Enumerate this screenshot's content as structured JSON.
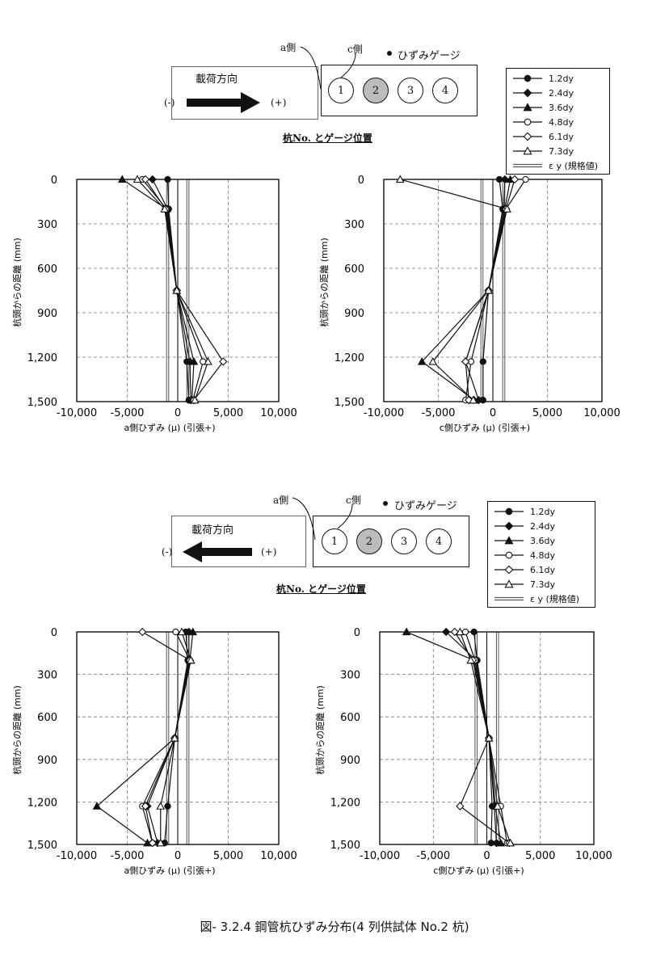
{
  "figure_caption": "図- 3.2.4 鋼管杭ひずみ分布(4 列供試体 No.2 杭)",
  "legend": [
    {
      "name": "1.2dy",
      "marker": "circle-filled"
    },
    {
      "name": "2.4dy",
      "marker": "diamond-filled"
    },
    {
      "name": "3.6dy",
      "marker": "triangle-filled"
    },
    {
      "name": "4.8dy",
      "marker": "circle-open"
    },
    {
      "name": "6.1dy",
      "marker": "diamond-open"
    },
    {
      "name": "7.3dy",
      "marker": "triangle-open"
    },
    {
      "name": "ε y (規格値)",
      "marker": "double-line"
    }
  ],
  "diagrams": [
    {
      "a_side": "a側",
      "c_side": "c側",
      "gauge_label": "ひずみゲージ",
      "load_dir_label": "載荷方向",
      "minus": "(-)",
      "plus": "(+)",
      "direction": "right",
      "pile_labels": [
        "1",
        "2",
        "3",
        "4"
      ],
      "caption": "杭No. とゲージ位置"
    },
    {
      "a_side": "a側",
      "c_side": "c側",
      "gauge_label": "ひずみゲージ",
      "load_dir_label": "載荷方向",
      "minus": "(-)",
      "plus": "(+)",
      "direction": "left",
      "pile_labels": [
        "1",
        "2",
        "3",
        "4"
      ],
      "caption": "杭No. とゲージ位置"
    }
  ],
  "chart_data": [
    {
      "type": "line",
      "ylabel": "杭頭からの距離 (mm)",
      "xlabel": "a側ひずみ (μ) (引張+)",
      "xlim": [
        -10000,
        10000
      ],
      "ylim": [
        0,
        1500
      ],
      "y_inverted": true,
      "xticks": [
        "-10,000",
        "-5,000",
        "0",
        "5,000",
        "10,000"
      ],
      "yticks": [
        "0",
        "300",
        "600",
        "900",
        "1,200",
        "1,500"
      ],
      "epsilon_y": [
        -1000,
        1000
      ],
      "y_depths": [
        0,
        200,
        750,
        1230,
        1490
      ],
      "series": [
        {
          "name": "1.2dy",
          "x": [
            -1000,
            -900,
            -100,
            900,
            1100
          ]
        },
        {
          "name": "2.4dy",
          "x": [
            -2500,
            -1000,
            -100,
            1200,
            1300
          ]
        },
        {
          "name": "3.6dy",
          "x": [
            -5500,
            -1100,
            -100,
            1600,
            1400
          ]
        },
        {
          "name": "4.8dy",
          "x": [
            -3500,
            -1100,
            -100,
            2500,
            1500
          ]
        },
        {
          "name": "6.1dy",
          "x": [
            -3200,
            -1200,
            -100,
            4500,
            1600
          ]
        },
        {
          "name": "7.3dy",
          "x": [
            -4000,
            -1300,
            -100,
            3000,
            1700
          ]
        }
      ]
    },
    {
      "type": "line",
      "ylabel": "杭頭からの距離 (mm)",
      "xlabel": "c側ひずみ (μ) (引張+)",
      "xlim": [
        -10000,
        10000
      ],
      "ylim": [
        0,
        1500
      ],
      "y_inverted": true,
      "xticks": [
        "-10,000",
        "-5,000",
        "0",
        "5,000",
        "10,000"
      ],
      "yticks": [
        "0",
        "300",
        "600",
        "900",
        "1,200",
        "1,500"
      ],
      "epsilon_y": [
        -1000,
        1000
      ],
      "y_depths": [
        0,
        200,
        750,
        1230,
        1490
      ],
      "series": [
        {
          "name": "1.2dy",
          "x": [
            600,
            900,
            -400,
            -900,
            -900
          ]
        },
        {
          "name": "2.4dy",
          "x": [
            1100,
            1000,
            -400,
            -2500,
            -1300
          ]
        },
        {
          "name": "3.6dy",
          "x": [
            1600,
            1100,
            -400,
            -6500,
            -1700
          ]
        },
        {
          "name": "4.8dy",
          "x": [
            3000,
            1200,
            -400,
            -2000,
            -2500
          ]
        },
        {
          "name": "6.1dy",
          "x": [
            2000,
            1200,
            -400,
            -2500,
            -2200
          ]
        },
        {
          "name": "7.3dy",
          "x": [
            -8500,
            1300,
            -400,
            -5500,
            -1800
          ]
        }
      ]
    },
    {
      "type": "line",
      "ylabel": "杭頭からの距離 (mm)",
      "xlabel": "a側ひずみ (μ) (引張+)",
      "xlim": [
        -10000,
        10000
      ],
      "ylim": [
        0,
        1500
      ],
      "y_inverted": true,
      "xticks": [
        "-10,000",
        "-5,000",
        "0",
        "5,000",
        "10,000"
      ],
      "yticks": [
        "0",
        "300",
        "600",
        "900",
        "1,200",
        "1,500"
      ],
      "epsilon_y": [
        -1000,
        1000
      ],
      "y_depths": [
        0,
        200,
        750,
        1230,
        1490
      ],
      "series": [
        {
          "name": "1.2dy",
          "x": [
            800,
            1000,
            -300,
            -1000,
            -1300
          ]
        },
        {
          "name": "2.4dy",
          "x": [
            1100,
            1100,
            -300,
            -3000,
            -2000
          ]
        },
        {
          "name": "3.6dy",
          "x": [
            1500,
            1200,
            -300,
            -8000,
            -3000
          ]
        },
        {
          "name": "4.8dy",
          "x": [
            -200,
            1200,
            -300,
            -3500,
            -2500
          ]
        },
        {
          "name": "6.1dy",
          "x": [
            -3500,
            1200,
            -300,
            -3200,
            -2500
          ]
        },
        {
          "name": "7.3dy",
          "x": [
            400,
            1300,
            -300,
            -1700,
            -1700
          ]
        }
      ]
    },
    {
      "type": "line",
      "ylabel": "杭頭からの距離 (mm)",
      "xlabel": "c側ひずみ (μ) (引張+)",
      "xlim": [
        -10000,
        10000
      ],
      "ylim": [
        0,
        1500
      ],
      "y_inverted": true,
      "xticks": [
        "-10,000",
        "-5,000",
        "0",
        "5,000",
        "10,000"
      ],
      "yticks": [
        "0",
        "300",
        "600",
        "900",
        "1,200",
        "1,500"
      ],
      "epsilon_y": [
        -1000,
        1000
      ],
      "y_depths": [
        0,
        200,
        750,
        1230,
        1490
      ],
      "series": [
        {
          "name": "1.2dy",
          "x": [
            -1200,
            -900,
            200,
            500,
            400
          ]
        },
        {
          "name": "2.4dy",
          "x": [
            -3800,
            -1000,
            200,
            700,
            900
          ]
        },
        {
          "name": "3.6dy",
          "x": [
            -7500,
            -1200,
            200,
            800,
            1300
          ]
        },
        {
          "name": "4.8dy",
          "x": [
            -2000,
            -1100,
            200,
            1300,
            1900
          ]
        },
        {
          "name": "6.1dy",
          "x": [
            -3000,
            -1300,
            200,
            -2500,
            2100
          ]
        },
        {
          "name": "7.3dy",
          "x": [
            -2500,
            -1500,
            200,
            1000,
            2200
          ]
        }
      ]
    }
  ]
}
